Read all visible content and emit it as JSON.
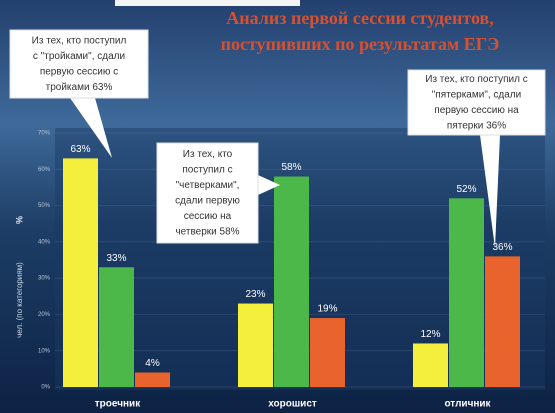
{
  "chart_data": {
    "type": "bar",
    "title": [
      "Анализ первой сессии студентов,",
      "поступивших по результатам ЕГЭ"
    ],
    "ylabel": [
      "чел. (по категориям)",
      "%"
    ],
    "categories": [
      "троечник",
      "хорошист",
      "отличник"
    ],
    "series": [
      {
        "color": "#f4ee3c",
        "values": [
          63,
          23,
          12
        ],
        "value_labels": [
          "63%",
          "23%",
          "12%"
        ]
      },
      {
        "color": "#4cb84a",
        "values": [
          33,
          58,
          52
        ],
        "value_labels": [
          "33%",
          "58%",
          "52%"
        ]
      },
      {
        "color": "#e8642c",
        "values": [
          4,
          19,
          36
        ],
        "value_labels": [
          "4%",
          "19%",
          "36%"
        ]
      }
    ],
    "ylim": [
      0,
      70
    ],
    "yticks": [
      {
        "value": 0,
        "label": "0%"
      },
      {
        "value": 10,
        "label": "10%"
      },
      {
        "value": 20,
        "label": "20%"
      },
      {
        "value": 30,
        "label": "30%"
      },
      {
        "value": 40,
        "label": "40%"
      },
      {
        "value": 50,
        "label": "50%"
      },
      {
        "value": 60,
        "label": "60%"
      },
      {
        "value": 70,
        "label": "70%"
      }
    ],
    "grid": true,
    "annotations": [
      {
        "lines": [
          "Из тех, кто поступил",
          "с \"тройками\", сдали",
          "первую сессию с",
          "тройками   63%"
        ]
      },
      {
        "lines": [
          "Из тех, кто",
          "поступил с",
          "\"четверками\",",
          "сдали первую",
          "сессию на",
          "четверки  58%"
        ]
      },
      {
        "lines": [
          "Из тех, кто поступил с",
          "\"пятерками\", сдали",
          "первую сессию на",
          "пятерки 36%"
        ]
      }
    ]
  }
}
